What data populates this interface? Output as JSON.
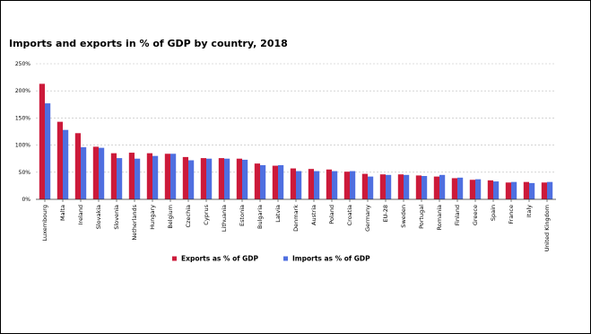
{
  "chart_data": {
    "type": "bar",
    "title": "Imports and exports in % of GDP by country, 2018",
    "xlabel": "",
    "ylabel": "",
    "ylim": [
      0,
      250
    ],
    "yticks": [
      0,
      50,
      100,
      150,
      200,
      250
    ],
    "ytick_suffix": "%",
    "grid": true,
    "legend_position": "bottom",
    "categories": [
      "Luxembourg",
      "Malta",
      "Ireland",
      "Slovakia",
      "Slovenia",
      "Netherlands",
      "Hungary",
      "Belgium",
      "Czechia",
      "Cyprus",
      "Lithuania",
      "Estonia",
      "Bulgaria",
      "Latvia",
      "Denmark",
      "Austria",
      "Poland",
      "Croatia",
      "Germany",
      "EU-28",
      "Sweden",
      "Portugal",
      "Romania",
      "Finland",
      "Greece",
      "Spain",
      "France",
      "Italy",
      "United Kingdom"
    ],
    "series": [
      {
        "name": "Exports as % of GDP",
        "color": "#cc1a3a",
        "values": [
          213,
          143,
          122,
          97,
          85,
          86,
          85,
          84,
          78,
          76,
          76,
          75,
          66,
          62,
          57,
          56,
          55,
          51,
          47,
          46,
          46,
          44,
          42,
          39,
          36,
          35,
          31,
          32,
          31
        ]
      },
      {
        "name": "Imports as % of GDP",
        "color": "#4f6fe0",
        "values": [
          177,
          128,
          96,
          95,
          76,
          75,
          80,
          84,
          72,
          75,
          75,
          73,
          63,
          63,
          52,
          52,
          52,
          52,
          42,
          45,
          45,
          43,
          45,
          40,
          37,
          33,
          32,
          30,
          32
        ]
      }
    ]
  }
}
